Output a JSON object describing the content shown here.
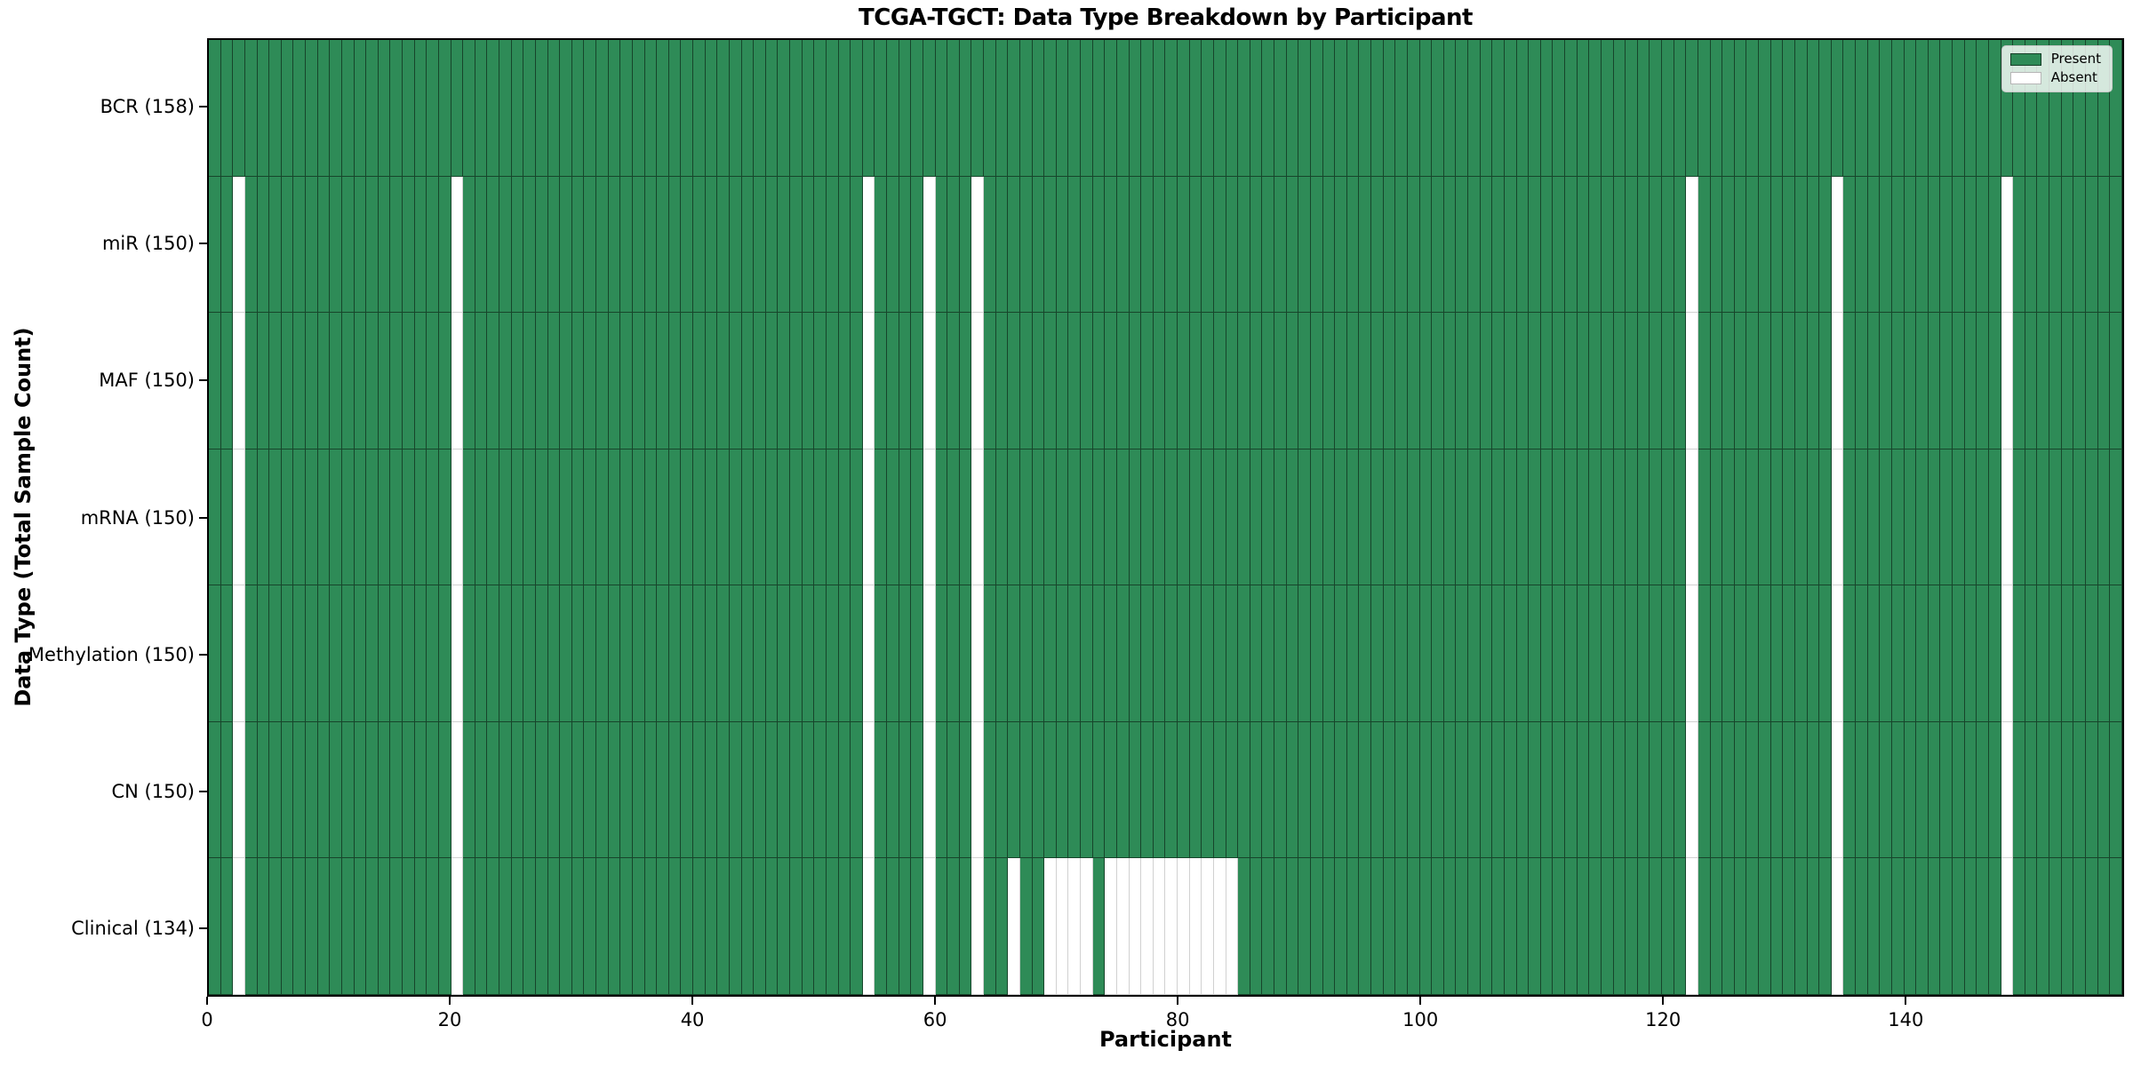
{
  "chart_data": {
    "type": "heatmap",
    "title": "TCGA-TGCT: Data Type Breakdown by Participant",
    "xlabel": "Participant",
    "ylabel": "Data Type (Total Sample Count)",
    "n_participants": 158,
    "x_ticks": [
      0,
      20,
      40,
      60,
      80,
      100,
      120,
      140
    ],
    "x_range": [
      0,
      158
    ],
    "grid": false,
    "cell_states": [
      "Present",
      "Absent"
    ],
    "colors": {
      "present": "#2e8b57",
      "absent": "#ffffff",
      "spine": "#000000"
    },
    "legend": {
      "position": "upper right",
      "entries": [
        {
          "label": "Present",
          "state": "present",
          "color": "#2e8b57"
        },
        {
          "label": "Absent",
          "state": "absent",
          "color": "#ffffff"
        }
      ]
    },
    "rows": [
      {
        "name": "BCR",
        "label": "BCR (158)",
        "present_count": 158,
        "absent_participants": []
      },
      {
        "name": "miR",
        "label": "miR (150)",
        "present_count": 150,
        "absent_participants": [
          2,
          20,
          54,
          59,
          63,
          122,
          134,
          148
        ]
      },
      {
        "name": "MAF",
        "label": "MAF (150)",
        "present_count": 150,
        "absent_participants": [
          2,
          20,
          54,
          59,
          63,
          122,
          134,
          148
        ]
      },
      {
        "name": "mRNA",
        "label": "mRNA (150)",
        "present_count": 150,
        "absent_participants": [
          2,
          20,
          54,
          59,
          63,
          122,
          134,
          148
        ]
      },
      {
        "name": "Methylation",
        "label": "Methylation (150)",
        "present_count": 150,
        "absent_participants": [
          2,
          20,
          54,
          59,
          63,
          122,
          134,
          148
        ]
      },
      {
        "name": "CN",
        "label": "CN (150)",
        "present_count": 150,
        "absent_participants": [
          2,
          20,
          54,
          59,
          63,
          122,
          134,
          148
        ]
      },
      {
        "name": "Clinical",
        "label": "Clinical (134)",
        "present_count": 134,
        "absent_participants": [
          2,
          20,
          54,
          59,
          63,
          66,
          69,
          70,
          71,
          72,
          74,
          75,
          76,
          77,
          78,
          79,
          80,
          81,
          82,
          83,
          84,
          122,
          134,
          148
        ]
      }
    ]
  }
}
